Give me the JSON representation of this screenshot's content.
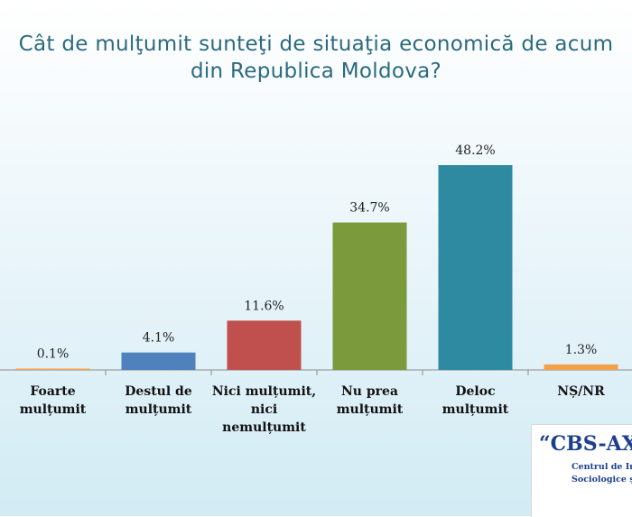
{
  "title": {
    "line1": "Cât de mulţumit sunteţi de situaţia economică de acum",
    "line2": "din Republica Moldova?"
  },
  "chart_data": {
    "type": "bar",
    "categories": [
      [
        "Foarte",
        "mulțumit"
      ],
      [
        "Destul de",
        "mulțumit"
      ],
      [
        "Nici mulțumit,",
        "nici",
        "nemulțumit"
      ],
      [
        "Nu prea",
        "mulțumit"
      ],
      [
        "Deloc",
        "mulțumit"
      ],
      [
        "NȘ/NR"
      ]
    ],
    "values": [
      0.1,
      4.1,
      11.6,
      34.7,
      48.2,
      1.3
    ],
    "labels": [
      "0.1%",
      "4.1%",
      "11.6%",
      "34.7%",
      "48.2%",
      "1.3%"
    ],
    "colors": [
      "#f2a14a",
      "#4f81bd",
      "#c0504d",
      "#7a9a3c",
      "#2e8aa0",
      "#f2a14a"
    ],
    "ylim": [
      0,
      48.2
    ],
    "grid": false,
    "legend": "none"
  },
  "logo": {
    "main": "“CBS-AXA”",
    "sub1": "Centrul de Investigații",
    "sub2": "Sociologice și Marketing"
  }
}
